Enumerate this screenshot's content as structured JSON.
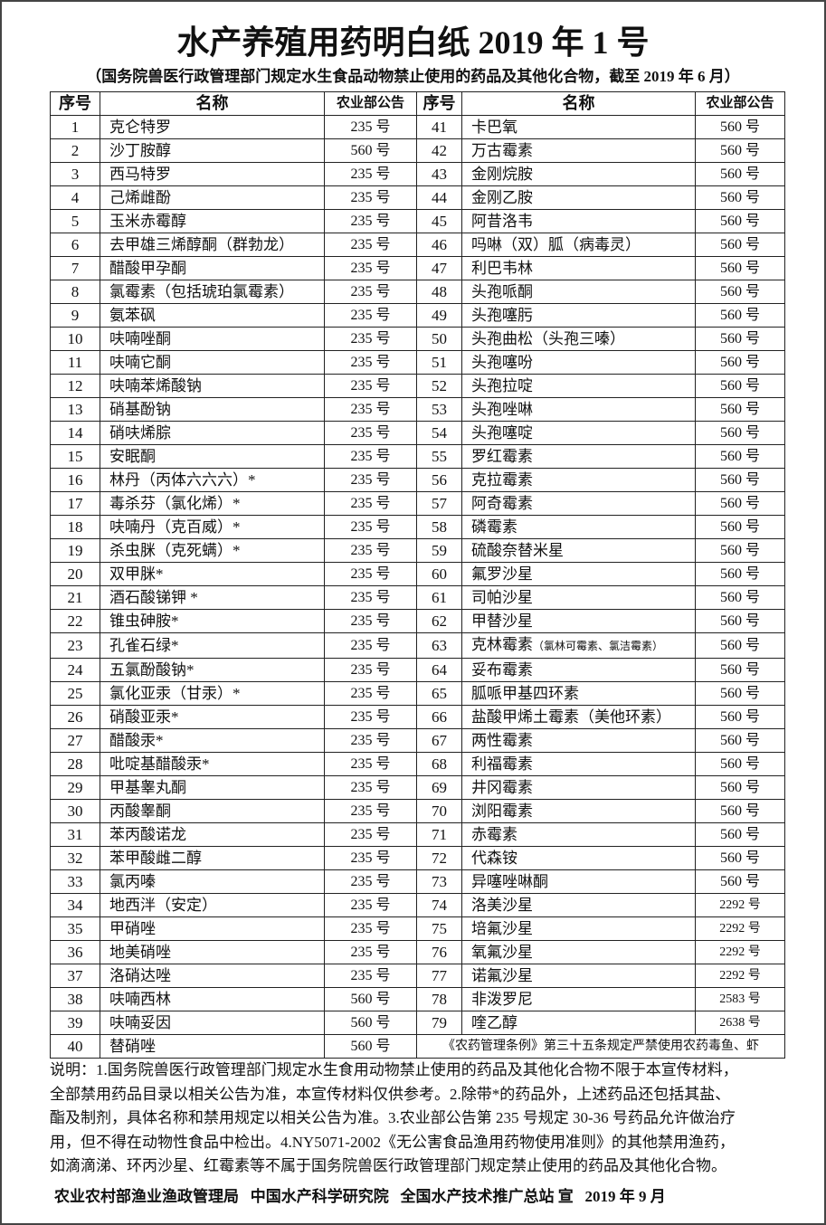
{
  "title": "水产养殖用药明白纸 2019 年 1 号",
  "subtitle": "（国务院兽医行政管理部门规定水生食品动物禁止使用的药品及其他化合物，截至 2019 年 6 月）",
  "table": {
    "headers": {
      "no": "序号",
      "name": "名称",
      "announcement": "农业部公告"
    },
    "left": [
      {
        "no": "1",
        "name": "克仑特罗",
        "ann": "235 号"
      },
      {
        "no": "2",
        "name": "沙丁胺醇",
        "ann": "560 号"
      },
      {
        "no": "3",
        "name": "西马特罗",
        "ann": "235 号"
      },
      {
        "no": "4",
        "name": "己烯雌酚",
        "ann": "235 号"
      },
      {
        "no": "5",
        "name": "玉米赤霉醇",
        "ann": "235 号"
      },
      {
        "no": "6",
        "name": "去甲雄三烯醇酮（群勃龙）",
        "ann": "235 号"
      },
      {
        "no": "7",
        "name": "醋酸甲孕酮",
        "ann": "235 号"
      },
      {
        "no": "8",
        "name": "氯霉素（包括琥珀氯霉素）",
        "ann": "235 号"
      },
      {
        "no": "9",
        "name": "氨苯砜",
        "ann": "235 号"
      },
      {
        "no": "10",
        "name": "呋喃唑酮",
        "ann": "235 号"
      },
      {
        "no": "11",
        "name": "呋喃它酮",
        "ann": "235 号"
      },
      {
        "no": "12",
        "name": "呋喃苯烯酸钠",
        "ann": "235 号"
      },
      {
        "no": "13",
        "name": "硝基酚钠",
        "ann": "235 号"
      },
      {
        "no": "14",
        "name": "硝呋烯腙",
        "ann": "235 号"
      },
      {
        "no": "15",
        "name": "安眠酮",
        "ann": "235 号"
      },
      {
        "no": "16",
        "name": "林丹（丙体六六六）*",
        "ann": "235 号"
      },
      {
        "no": "17",
        "name": "毒杀芬（氯化烯）*",
        "ann": "235 号"
      },
      {
        "no": "18",
        "name": "呋喃丹（克百威）*",
        "ann": "235 号"
      },
      {
        "no": "19",
        "name": "杀虫脒（克死螨）*",
        "ann": "235 号"
      },
      {
        "no": "20",
        "name": "双甲脒*",
        "ann": "235 号"
      },
      {
        "no": "21",
        "name": "酒石酸锑钾  *",
        "ann": "235 号"
      },
      {
        "no": "22",
        "name": "锥虫砷胺*",
        "ann": "235 号"
      },
      {
        "no": "23",
        "name": "孔雀石绿*",
        "ann": "235 号"
      },
      {
        "no": "24",
        "name": "五氯酚酸钠*",
        "ann": "235 号"
      },
      {
        "no": "25",
        "name": "氯化亚汞（甘汞）*",
        "ann": "235 号"
      },
      {
        "no": "26",
        "name": "硝酸亚汞*",
        "ann": "235 号"
      },
      {
        "no": "27",
        "name": "醋酸汞*",
        "ann": "235 号"
      },
      {
        "no": "28",
        "name": "吡啶基醋酸汞*",
        "ann": "235 号"
      },
      {
        "no": "29",
        "name": "甲基睾丸酮",
        "ann": "235 号"
      },
      {
        "no": "30",
        "name": "丙酸睾酮",
        "ann": "235 号"
      },
      {
        "no": "31",
        "name": "苯丙酸诺龙",
        "ann": "235 号"
      },
      {
        "no": "32",
        "name": "苯甲酸雌二醇",
        "ann": "235 号"
      },
      {
        "no": "33",
        "name": "氯丙嗪",
        "ann": "235 号"
      },
      {
        "no": "34",
        "name": "地西泮（安定）",
        "ann": "235 号"
      },
      {
        "no": "35",
        "name": "甲硝唑",
        "ann": "235 号"
      },
      {
        "no": "36",
        "name": "地美硝唑",
        "ann": "235 号"
      },
      {
        "no": "37",
        "name": "洛硝达唑",
        "ann": "235 号"
      },
      {
        "no": "38",
        "name": "呋喃西林",
        "ann": "560 号"
      },
      {
        "no": "39",
        "name": "呋喃妥因",
        "ann": "560 号"
      },
      {
        "no": "40",
        "name": "替硝唑",
        "ann": "560 号"
      }
    ],
    "right": [
      {
        "no": "41",
        "name": "卡巴氧",
        "ann": "560 号"
      },
      {
        "no": "42",
        "name": "万古霉素",
        "ann": "560 号"
      },
      {
        "no": "43",
        "name": "金刚烷胺",
        "ann": "560 号"
      },
      {
        "no": "44",
        "name": "金刚乙胺",
        "ann": "560 号"
      },
      {
        "no": "45",
        "name": "阿昔洛韦",
        "ann": "560 号"
      },
      {
        "no": "46",
        "name": "吗啉（双）胍（病毒灵）",
        "ann": "560 号"
      },
      {
        "no": "47",
        "name": "利巴韦林",
        "ann": "560 号"
      },
      {
        "no": "48",
        "name": "头孢哌酮",
        "ann": "560 号"
      },
      {
        "no": "49",
        "name": "头孢噻肟",
        "ann": "560 号"
      },
      {
        "no": "50",
        "name": "头孢曲松（头孢三嗪）",
        "ann": "560 号"
      },
      {
        "no": "51",
        "name": "头孢噻吩",
        "ann": "560 号"
      },
      {
        "no": "52",
        "name": "头孢拉啶",
        "ann": "560 号"
      },
      {
        "no": "53",
        "name": "头孢唑啉",
        "ann": "560 号"
      },
      {
        "no": "54",
        "name": "头孢噻啶",
        "ann": "560 号"
      },
      {
        "no": "55",
        "name": "罗红霉素",
        "ann": "560 号"
      },
      {
        "no": "56",
        "name": "克拉霉素",
        "ann": "560 号"
      },
      {
        "no": "57",
        "name": "阿奇霉素",
        "ann": "560 号"
      },
      {
        "no": "58",
        "name": "磷霉素",
        "ann": "560 号"
      },
      {
        "no": "59",
        "name": "硫酸奈替米星",
        "ann": "560 号"
      },
      {
        "no": "60",
        "name": "氟罗沙星",
        "ann": "560 号"
      },
      {
        "no": "61",
        "name": "司帕沙星",
        "ann": "560 号"
      },
      {
        "no": "62",
        "name": "甲替沙星",
        "ann": "560 号"
      },
      {
        "no": "63",
        "name": "克林霉素",
        "name_note": "（氯林可霉素、氯洁霉素）",
        "ann": "560 号"
      },
      {
        "no": "64",
        "name": "妥布霉素",
        "ann": "560 号"
      },
      {
        "no": "65",
        "name": "胍哌甲基四环素",
        "ann": "560 号"
      },
      {
        "no": "66",
        "name": "盐酸甲烯土霉素（美他环素）",
        "ann": "560 号"
      },
      {
        "no": "67",
        "name": "两性霉素",
        "ann": "560 号"
      },
      {
        "no": "68",
        "name": "利福霉素",
        "ann": "560 号"
      },
      {
        "no": "69",
        "name": "井冈霉素",
        "ann": "560 号"
      },
      {
        "no": "70",
        "name": "浏阳霉素",
        "ann": "560 号"
      },
      {
        "no": "71",
        "name": "赤霉素",
        "ann": "560 号"
      },
      {
        "no": "72",
        "name": "代森铵",
        "ann": "560 号"
      },
      {
        "no": "73",
        "name": "异噻唑啉酮",
        "ann": "560 号"
      },
      {
        "no": "74",
        "name": "洛美沙星",
        "ann": "2292 号"
      },
      {
        "no": "75",
        "name": "培氟沙星",
        "ann": "2292 号"
      },
      {
        "no": "76",
        "name": "氧氟沙星",
        "ann": "2292 号"
      },
      {
        "no": "77",
        "name": "诺氟沙星",
        "ann": "2292 号"
      },
      {
        "no": "78",
        "name": "非泼罗尼",
        "ann": "2583 号"
      },
      {
        "no": "79",
        "name": "喹乙醇",
        "ann": "2638 号"
      }
    ],
    "merged_note": "《农药管理条例》第三十五条规定严禁使用农药毒鱼、虾"
  },
  "notes": [
    "说明：1.国务院兽医行政管理部门规定水生食用动物禁止使用的药品及其他化合物不限于本宣传材料，",
    "全部禁用药品目录以相关公告为准，本宣传材料仅供参考。2.除带*的药品外，上述药品还包括其盐、",
    "酯及制剂，具体名称和禁用规定以相关公告为准。3.农业部公告第 235 号规定 30-36 号药品允许做治疗",
    "用，但不得在动物性食品中检出。4.NY5071-2002《无公害食品渔用药物使用准则》的其他禁用渔药，",
    "如滴滴涕、环丙沙星、红霉素等不属于国务院兽医行政管理部门规定禁止使用的药品及其他化合物。"
  ],
  "footer": "农业农村部渔业渔政管理局   中国水产科学研究院   全国水产技术推广总站 宣   2019 年 9 月"
}
